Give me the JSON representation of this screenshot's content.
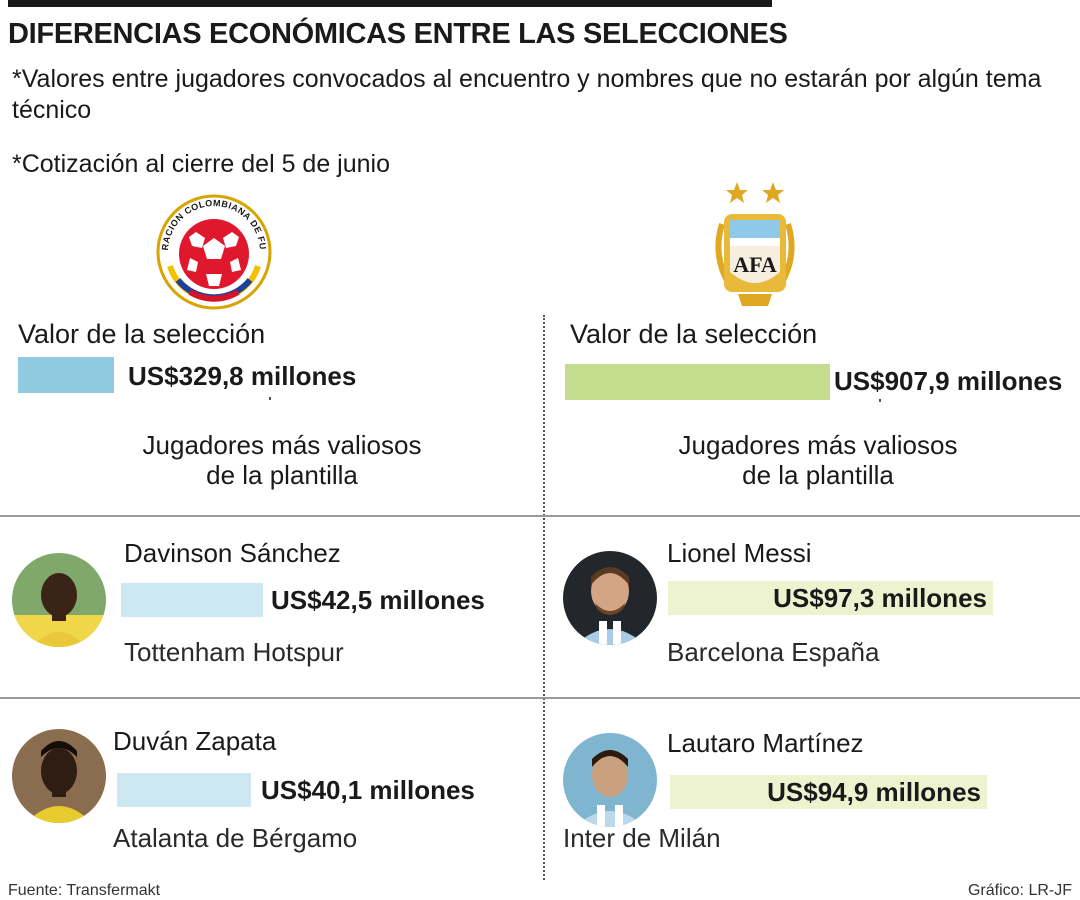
{
  "title": "DIFERENCIAS ECONÓMICAS ENTRE LAS SELECCIONES",
  "notes": [
    "*Valores entre jugadores convocados al encuentro y nombres que no estarán por algún tema técnico",
    "*Cotización al cierre del 5 de junio"
  ],
  "crests": {
    "colombia_text": "FEDERACION COLOMBIANA DE FUTBOL",
    "argentina_text": "AFA"
  },
  "colors": {
    "colombia_team": "#8ecae0",
    "colombia_player": "#cde8f0",
    "argentina_team": "#c3dc8e",
    "argentina_player": "#eef3cf"
  },
  "chart_data": {
    "type": "bar",
    "unit": "millones de US$",
    "teams": [
      {
        "side": "colombia",
        "label": "Valor de la selección",
        "value": 329.8,
        "value_text": "US$329,8 millones",
        "players_heading": [
          "Jugadores más valiosos",
          "de la plantilla"
        ],
        "players": [
          {
            "name": "Davinson Sánchez",
            "club": "Tottenham Hotspur",
            "value": 42.5,
            "value_text": "US$42,5 millones"
          },
          {
            "name": "Duván Zapata",
            "club": "Atalanta de Bérgamo",
            "value": 40.1,
            "value_text": "US$40,1 millones"
          }
        ]
      },
      {
        "side": "argentina",
        "label": "Valor de la selección",
        "value": 907.9,
        "value_text": "US$907,9 millones",
        "players_heading": [
          "Jugadores más valiosos",
          "de la plantilla"
        ],
        "players": [
          {
            "name": "Lionel Messi",
            "club": "Barcelona España",
            "value": 97.3,
            "value_text": "US$97,3 millones"
          },
          {
            "name": "Lautaro Martínez",
            "club": "Inter de Milán",
            "value": 94.9,
            "value_text": "US$94,9 millones"
          }
        ]
      }
    ]
  },
  "footer": {
    "source": "Fuente: Transfermakt",
    "credit": "Gráfico: LR-JF"
  }
}
